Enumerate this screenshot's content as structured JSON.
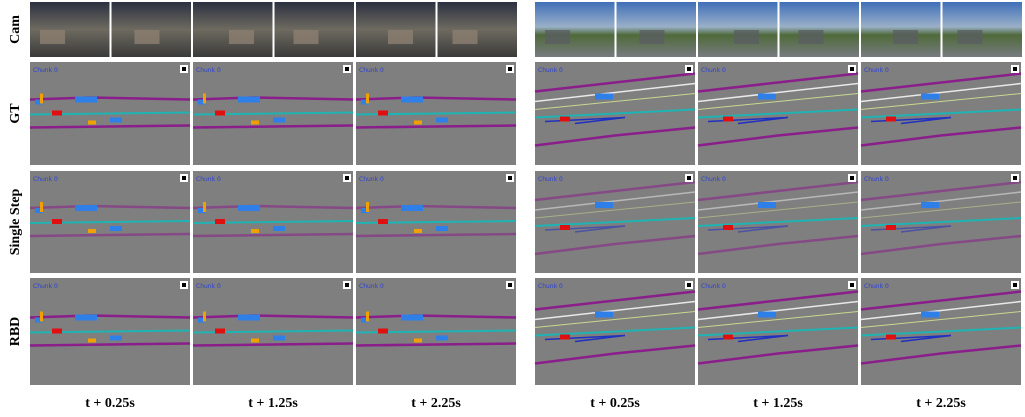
{
  "row_labels": [
    "Cam",
    "GT",
    "Single Step",
    "RBD"
  ],
  "column_labels": [
    "t + 0.25s",
    "t + 1.25s",
    "t + 2.25s",
    "t + 0.25s",
    "t + 1.25s",
    "t + 2.25s"
  ],
  "panel_text": "Chunk 0"
}
